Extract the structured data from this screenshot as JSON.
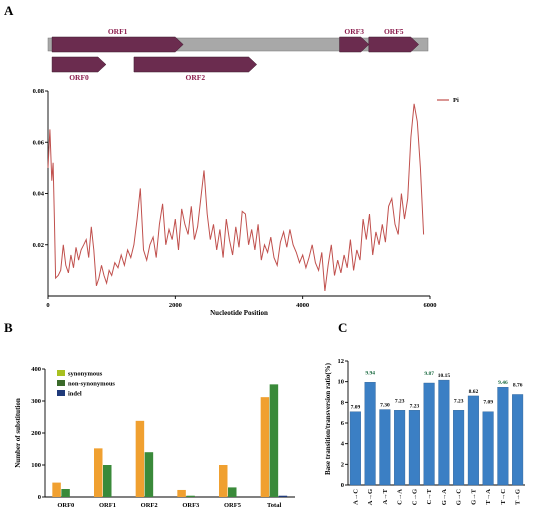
{
  "panels": {
    "a": "A",
    "b": "B",
    "c": "C"
  },
  "genome_map": {
    "genome_color": "#a8a8a8",
    "orf_color": "#6b2c4f",
    "orfs": [
      {
        "label": "ORF1",
        "start": 65,
        "end": 2170,
        "row": "top"
      },
      {
        "label": "ORF0",
        "start": 65,
        "end": 930,
        "row": "bottom"
      },
      {
        "label": "ORF2",
        "start": 1380,
        "end": 3350,
        "row": "bottom"
      },
      {
        "label": "ORF3",
        "start": 4680,
        "end": 5150,
        "row": "top"
      },
      {
        "label": "ORF5",
        "start": 5150,
        "end": 5950,
        "row": "top"
      }
    ],
    "genome_start": 0,
    "genome_end": 6100
  },
  "chart_data": [
    {
      "type": "line",
      "xlabel": "Nucleotide Position",
      "ylabel": "",
      "xlim": [
        0,
        6000
      ],
      "ylim": [
        0,
        0.08
      ],
      "xticks": [
        "0",
        "2000",
        "4000",
        "6000"
      ],
      "yticks": [
        "0.02",
        "0.04",
        "0.06",
        "0.08"
      ],
      "legend_position": "top-right",
      "series": [
        {
          "name": "Pi",
          "color": "#c0504d",
          "x": [
            0,
            30,
            60,
            80,
            100,
            120,
            160,
            200,
            240,
            280,
            320,
            360,
            400,
            440,
            480,
            520,
            560,
            600,
            640,
            680,
            720,
            760,
            800,
            840,
            880,
            920,
            960,
            1000,
            1050,
            1100,
            1150,
            1200,
            1250,
            1300,
            1350,
            1400,
            1450,
            1500,
            1550,
            1600,
            1650,
            1700,
            1750,
            1800,
            1850,
            1900,
            1950,
            2000,
            2050,
            2100,
            2150,
            2200,
            2250,
            2300,
            2350,
            2400,
            2450,
            2500,
            2550,
            2600,
            2650,
            2700,
            2750,
            2800,
            2850,
            2900,
            2950,
            3000,
            3050,
            3100,
            3150,
            3200,
            3250,
            3300,
            3350,
            3400,
            3450,
            3500,
            3550,
            3600,
            3650,
            3700,
            3750,
            3800,
            3850,
            3900,
            3950,
            4000,
            4050,
            4100,
            4150,
            4200,
            4250,
            4300,
            4350,
            4400,
            4450,
            4500,
            4550,
            4600,
            4650,
            4700,
            4750,
            4800,
            4850,
            4900,
            4950,
            5000,
            5050,
            5100,
            5150,
            5200,
            5250,
            5300,
            5350,
            5400,
            5450,
            5500,
            5550,
            5600,
            5650,
            5700,
            5750,
            5800,
            5850,
            5900
          ],
          "y": [
            0.05,
            0.065,
            0.045,
            0.052,
            0.03,
            0.007,
            0.008,
            0.01,
            0.02,
            0.012,
            0.009,
            0.016,
            0.011,
            0.019,
            0.014,
            0.018,
            0.02,
            0.022,
            0.015,
            0.027,
            0.018,
            0.004,
            0.007,
            0.012,
            0.008,
            0.005,
            0.01,
            0.008,
            0.013,
            0.011,
            0.016,
            0.012,
            0.018,
            0.015,
            0.02,
            0.03,
            0.042,
            0.018,
            0.014,
            0.02,
            0.023,
            0.015,
            0.028,
            0.036,
            0.02,
            0.026,
            0.022,
            0.03,
            0.018,
            0.034,
            0.028,
            0.024,
            0.035,
            0.022,
            0.027,
            0.038,
            0.049,
            0.032,
            0.022,
            0.028,
            0.018,
            0.026,
            0.015,
            0.03,
            0.022,
            0.016,
            0.027,
            0.019,
            0.033,
            0.032,
            0.02,
            0.026,
            0.018,
            0.028,
            0.014,
            0.02,
            0.017,
            0.023,
            0.015,
            0.012,
            0.021,
            0.025,
            0.019,
            0.026,
            0.02,
            0.017,
            0.013,
            0.016,
            0.011,
            0.015,
            0.02,
            0.013,
            0.01,
            0.017,
            0.002,
            0.012,
            0.02,
            0.008,
            0.014,
            0.009,
            0.016,
            0.011,
            0.022,
            0.01,
            0.018,
            0.014,
            0.03,
            0.022,
            0.032,
            0.016,
            0.025,
            0.02,
            0.028,
            0.021,
            0.035,
            0.038,
            0.028,
            0.024,
            0.04,
            0.03,
            0.038,
            0.062,
            0.075,
            0.068,
            0.05,
            0.024
          ]
        }
      ]
    },
    {
      "type": "bar",
      "xlabel": "",
      "ylabel": "Number of substitution",
      "ylim": [
        0,
        400
      ],
      "yticks": [
        "0",
        "100",
        "200",
        "300",
        "400"
      ],
      "legend_position": "top-left",
      "categories": [
        "ORF0",
        "ORF1",
        "ORF2",
        "ORF3",
        "ORF5",
        "Total"
      ],
      "series": [
        {
          "name": "synonymous",
          "color": "#f0a030",
          "values": [
            45,
            152,
            238,
            22,
            100,
            312
          ]
        },
        {
          "name": "non-synonymous",
          "color": "#3a8a3a",
          "values": [
            25,
            100,
            140,
            4,
            30,
            352
          ]
        },
        {
          "name": "indel",
          "color": "#1f3a7a",
          "values": [
            0,
            0,
            0,
            0,
            0,
            4
          ]
        }
      ],
      "legend_swatch_colors": [
        "#a8c020",
        "#3a6a2a",
        "#1f3a7a"
      ]
    },
    {
      "type": "bar",
      "xlabel": "",
      "ylabel": "Base transition/transversion ratio(%)",
      "ylim": [
        0,
        12
      ],
      "yticks": [
        "0",
        "2",
        "4",
        "6",
        "8",
        "10",
        "12"
      ],
      "categories": [
        "A→C",
        "A→G",
        "A→T",
        "C→A",
        "C→G",
        "C→T",
        "G→A",
        "G→C",
        "G→T",
        "T→A",
        "T→C",
        "T→G"
      ],
      "label_colors": [
        "#000000",
        "#1a6a40",
        "#000000",
        "#000000",
        "#000000",
        "#1a6a40",
        "#000000",
        "#000000",
        "#000000",
        "#000000",
        "#1a6a40",
        "#000000"
      ],
      "series": [
        {
          "name": "",
          "color": "#3b7fc4",
          "values": [
            7.09,
            9.94,
            7.3,
            7.23,
            7.23,
            9.87,
            10.15,
            7.23,
            8.62,
            7.09,
            9.46,
            8.76
          ],
          "labels": [
            "7.09",
            "9.94",
            "7.30",
            "7.23",
            "7.23",
            "9.87",
            "10.15",
            "7.23",
            "8.62",
            "7.09",
            "9.46",
            "8.76"
          ]
        }
      ]
    }
  ]
}
